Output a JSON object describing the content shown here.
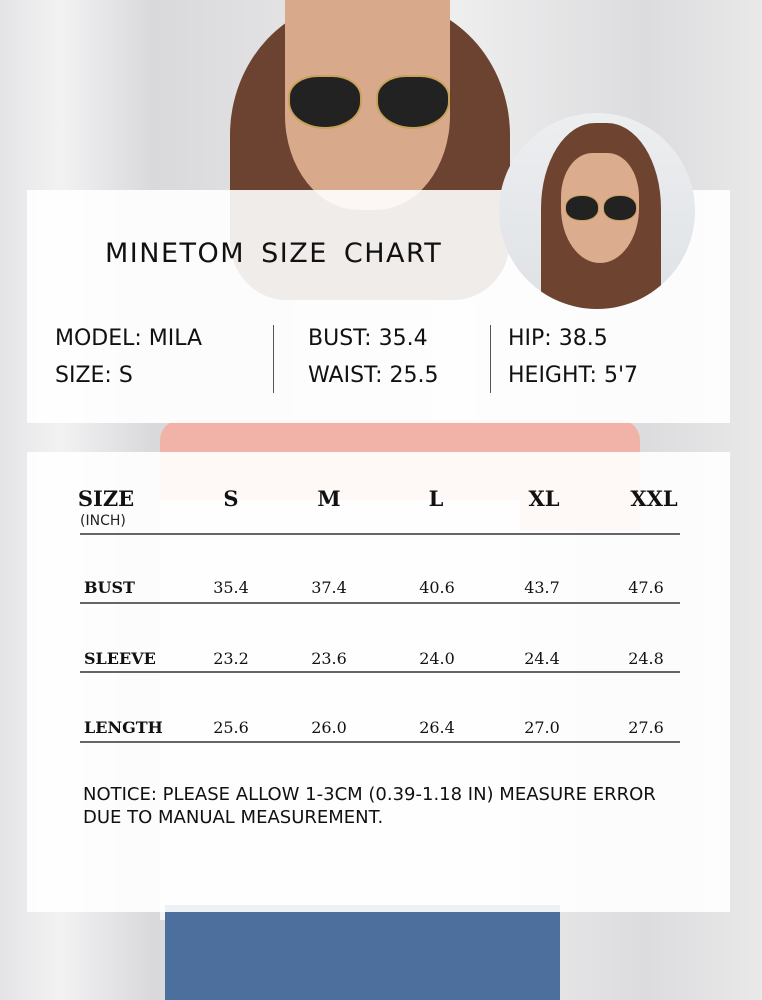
{
  "header": {
    "title": "MINETOM  SIZE  CHART"
  },
  "model": {
    "name": "MODEL: MILA",
    "size": "SIZE: S",
    "bust": "BUST: 35.4",
    "waist": "WAIST: 25.5",
    "hip": "HIP: 38.5",
    "height": "HEIGHT: 5'7"
  },
  "table": {
    "corner": "SIZE",
    "unit": "(INCH)",
    "columns": [
      "S",
      "M",
      "L",
      "XL",
      "XXL"
    ],
    "rows": [
      {
        "label": "BUST",
        "values": [
          "35.4",
          "37.4",
          "40.6",
          "43.7",
          "47.6"
        ]
      },
      {
        "label": "SLEEVE",
        "values": [
          "23.2",
          "23.6",
          "24.0",
          "24.4",
          "24.8"
        ]
      },
      {
        "label": "LENGTH",
        "values": [
          "25.6",
          "26.0",
          "26.4",
          "27.0",
          "27.6"
        ]
      }
    ]
  },
  "notice": "NOTICE: PLEASE ALLOW 1-3CM (0.39-1.18 IN) MEASURE ERROR DUE TO MANUAL MEASUREMENT."
}
